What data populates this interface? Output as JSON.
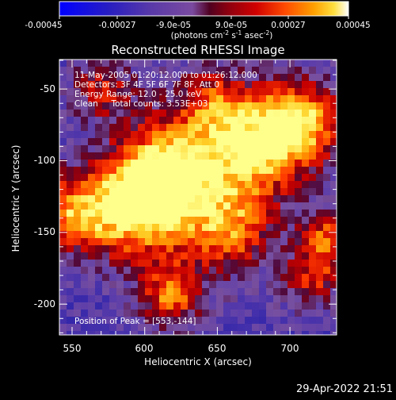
{
  "colorbar": {
    "tick_labels": [
      "-0.00045",
      "-0.00027",
      "-9.0e-05",
      "9.0e-05",
      "0.00027",
      "0.00045"
    ],
    "units_label": "(photons cm",
    "units_exp1": "-2",
    "units_mid": " s",
    "units_exp2": "-1",
    "units_mid2": " asec",
    "units_exp3": "-2",
    "units_end": ")",
    "stops": [
      "#0000ff",
      "#2a1fbf",
      "#5a3aa8",
      "#7a4aa0",
      "#6a1a4a",
      "#8a0010",
      "#c00000",
      "#ff3000",
      "#ff7a00",
      "#ffbf00",
      "#ffff60",
      "#ffffff"
    ]
  },
  "plot": {
    "title": "Reconstructed RHESSI Image",
    "x_label": "Heliocentric X (arcsec)",
    "y_label": "Heliocentric Y (arcsec)",
    "x_ticks": [
      "550",
      "600",
      "650",
      "700"
    ],
    "y_ticks": [
      "-50",
      "-100",
      "-150",
      "-200"
    ],
    "info_lines": [
      "11-May-2005 01:20:12.000 to 01:26:12.000",
      "Detectors: 3F 4F 5F 6F 7F 8F, Att 0",
      "Energy Range: 12.0 - 25.0 keV",
      "Clean     Total counts: 3.53E+03"
    ],
    "peak_label": "Position of Peak = [553,-144]"
  },
  "footer": {
    "timestamp": "29-Apr-2022 21:51"
  }
}
